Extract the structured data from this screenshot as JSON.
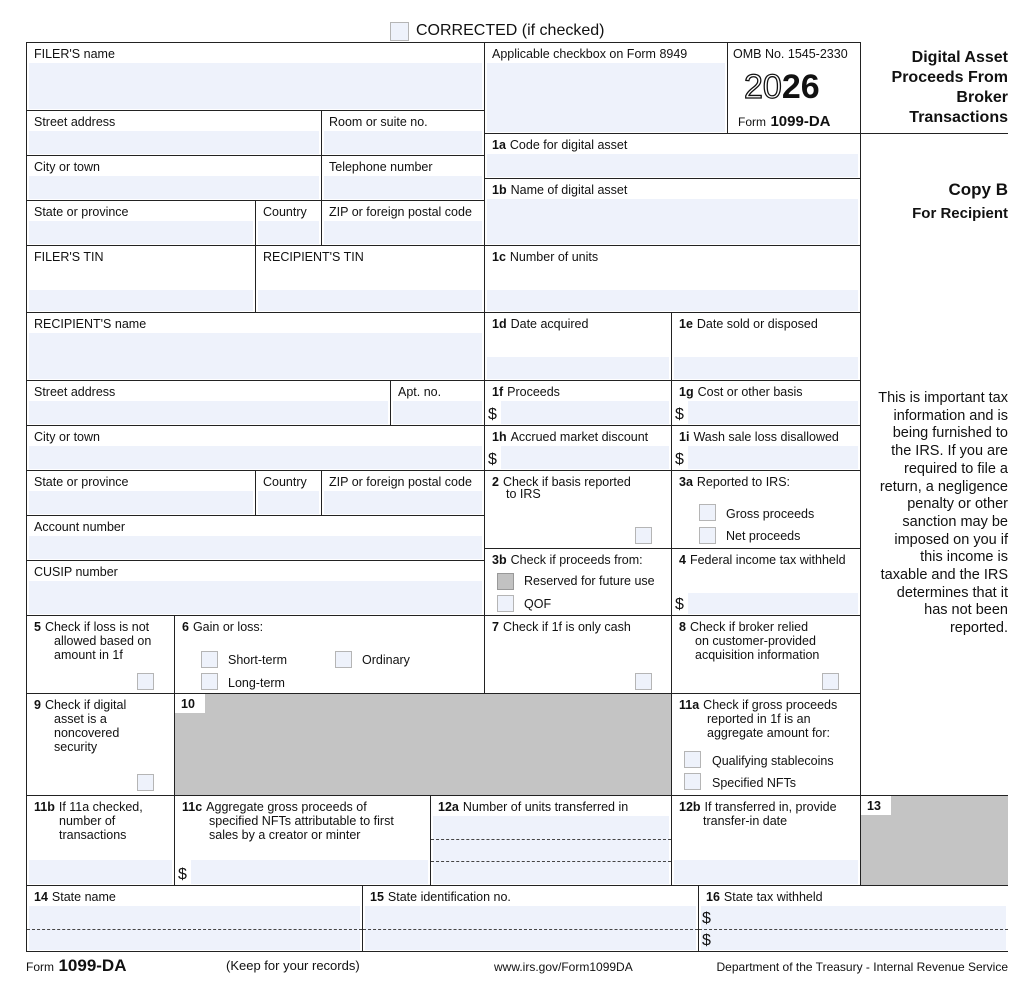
{
  "corrected_label": "CORRECTED (if checked)",
  "filer": {
    "name_label": "FILER'S name",
    "street_label": "Street address",
    "room_label": "Room or suite no.",
    "city_label": "City or town",
    "phone_label": "Telephone number",
    "state_label": "State or province",
    "country_label": "Country",
    "zip_label": "ZIP or foreign postal code",
    "tin_label": "FILER'S TIN"
  },
  "recipient": {
    "tin_label": "RECIPIENT'S TIN",
    "name_label": "RECIPIENT'S name",
    "street_label": "Street address",
    "apt_label": "Apt. no.",
    "city_label": "City or town",
    "state_label": "State or province",
    "country_label": "Country",
    "zip_label": "ZIP or foreign postal code",
    "account_label": "Account number",
    "cusip_label": "CUSIP number"
  },
  "top": {
    "applicable_label": "Applicable checkbox on Form 8949",
    "omb": "OMB No. 1545-2330",
    "year_outline": "20",
    "year_bold": "26",
    "form_prefix": "Form",
    "form_name": "1099-DA"
  },
  "title": [
    "Digital Asset",
    "Proceeds From",
    "Broker",
    "Transactions"
  ],
  "copy": {
    "title": "Copy B",
    "subtitle": "For Recipient"
  },
  "notice": [
    "This is important tax",
    "information and is",
    "being furnished to",
    "the IRS. If you are",
    "required to file a",
    "return, a negligence",
    "penalty or other",
    "sanction may be",
    "imposed on you if",
    "this income is",
    "taxable and the IRS",
    "determines that it",
    "has not been",
    "reported."
  ],
  "currency": "$",
  "boxes": {
    "b1a": {
      "num": "1a",
      "label": "Code for digital asset"
    },
    "b1b": {
      "num": "1b",
      "label": "Name of digital asset"
    },
    "b1c": {
      "num": "1c",
      "label": "Number of units"
    },
    "b1d": {
      "num": "1d",
      "label": "Date acquired"
    },
    "b1e": {
      "num": "1e",
      "label": "Date sold or disposed"
    },
    "b1f": {
      "num": "1f",
      "label": "Proceeds"
    },
    "b1g": {
      "num": "1g",
      "label": "Cost or other basis"
    },
    "b1h": {
      "num": "1h",
      "label": "Accrued market discount"
    },
    "b1i": {
      "num": "1i",
      "label": "Wash sale loss disallowed"
    },
    "b2": {
      "num": "2",
      "label": "Check if basis reported",
      "label2": "to IRS"
    },
    "b3a": {
      "num": "3a",
      "label": "Reported to IRS:",
      "opt1": "Gross proceeds",
      "opt2": "Net proceeds"
    },
    "b3b": {
      "num": "3b",
      "label": "Check if proceeds from:",
      "opt1": "Reserved for future use",
      "opt2": "QOF"
    },
    "b4": {
      "num": "4",
      "label": "Federal income tax withheld"
    },
    "b5": {
      "num": "5",
      "label": "Check if loss is not",
      "label2": "allowed based on",
      "label3": "amount in 1f"
    },
    "b6": {
      "num": "6",
      "label": "Gain or loss:",
      "opt1": "Short-term",
      "opt2": "Long-term",
      "opt3": "Ordinary"
    },
    "b7": {
      "num": "7",
      "label": "Check if 1f is only cash"
    },
    "b8": {
      "num": "8",
      "label": "Check if broker relied",
      "label2": "on customer-provided",
      "label3": "acquisition information"
    },
    "b9": {
      "num": "9",
      "label": "Check if digital",
      "label2": "asset is a",
      "label3": "noncovered",
      "label4": "security"
    },
    "b10": {
      "num": "10"
    },
    "b11a": {
      "num": "11a",
      "label": "Check if gross proceeds",
      "label2": "reported in 1f is an",
      "label3": "aggregate amount for:",
      "opt1": "Qualifying stablecoins",
      "opt2": "Specified NFTs"
    },
    "b11b": {
      "num": "11b",
      "label": "If 11a checked,",
      "label2": "number of",
      "label3": "transactions"
    },
    "b11c": {
      "num": "11c",
      "label": "Aggregate gross proceeds of",
      "label2": "specified NFTs attributable to first",
      "label3": "sales by a creator or minter"
    },
    "b12a": {
      "num": "12a",
      "label": "Number of units transferred in"
    },
    "b12b": {
      "num": "12b",
      "label": "If transferred in, provide",
      "label2": "transfer-in date"
    },
    "b13": {
      "num": "13"
    },
    "b14": {
      "num": "14",
      "label": "State name"
    },
    "b15": {
      "num": "15",
      "label": "State identification no."
    },
    "b16": {
      "num": "16",
      "label": "State tax withheld"
    }
  },
  "footer": {
    "form_prefix": "Form",
    "form_name": "1099-DA",
    "keep": "(Keep for your records)",
    "url": "www.irs.gov/Form1099DA",
    "dept": "Department of the Treasury - Internal Revenue Service"
  }
}
